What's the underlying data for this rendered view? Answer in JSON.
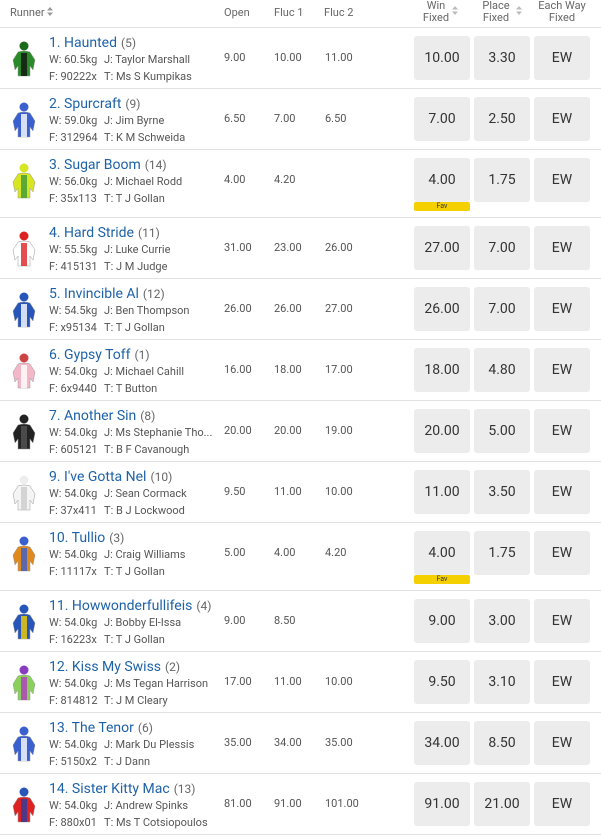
{
  "header": {
    "runner": "Runner",
    "open": "Open",
    "fluc1": "Fluc 1",
    "fluc2": "Fluc 2",
    "win": [
      "Win",
      "Fixed"
    ],
    "place": [
      "Place",
      "Fixed"
    ],
    "each_way": [
      "Each Way",
      "Fixed"
    ]
  },
  "runners": [
    {
      "name": "1. Haunted",
      "barrier": "(5)",
      "weight": "W: 60.5kg",
      "jockey": "J: Taylor Marshall",
      "form": "F: 90222x",
      "trainer": "T: Ms S Kumpikas",
      "open": "9.00",
      "fluc1": "10.00",
      "fluc2": "11.00",
      "win": "10.00",
      "place": "3.30",
      "ew": "EW",
      "fav": null
    },
    {
      "name": "2. Spurcraft",
      "barrier": "(9)",
      "weight": "W: 59.0kg",
      "jockey": "J: Jim Byrne",
      "form": "F: 312964",
      "trainer": "T: K M Schweida",
      "open": "6.50",
      "fluc1": "7.00",
      "fluc2": "6.50",
      "win": "7.00",
      "place": "2.50",
      "ew": "EW",
      "fav": null
    },
    {
      "name": "3. Sugar Boom",
      "barrier": "(14)",
      "weight": "W: 56.0kg",
      "jockey": "J: Michael Rodd",
      "form": "F: 35x113",
      "trainer": "T: T J Gollan",
      "open": "4.00",
      "fluc1": "4.20",
      "fluc2": null,
      "win": "4.00",
      "place": "1.75",
      "ew": "EW",
      "fav": "Fav"
    },
    {
      "name": "4. Hard Stride",
      "barrier": "(11)",
      "weight": "W: 55.5kg",
      "jockey": "J: Luke Currie",
      "form": "F: 415131",
      "trainer": "T: J M Judge",
      "open": "31.00",
      "fluc1": "23.00",
      "fluc2": "26.00",
      "win": "27.00",
      "place": "7.00",
      "ew": "EW",
      "fav": null
    },
    {
      "name": "5. Invincible Al",
      "barrier": "(12)",
      "weight": "W: 54.5kg",
      "jockey": "J: Ben Thompson",
      "form": "F: x95134",
      "trainer": "T: T J Gollan",
      "open": "26.00",
      "fluc1": "26.00",
      "fluc2": "27.00",
      "win": "26.00",
      "place": "7.00",
      "ew": "EW",
      "fav": null
    },
    {
      "name": "6. Gypsy Toff",
      "barrier": "(1)",
      "weight": "W: 54.0kg",
      "jockey": "J: Michael Cahill",
      "form": "F: 6x9440",
      "trainer": "T: T Button",
      "open": "16.00",
      "fluc1": "18.00",
      "fluc2": "17.00",
      "win": "18.00",
      "place": "4.80",
      "ew": "EW",
      "fav": null
    },
    {
      "name": "7. Another Sin",
      "barrier": "(8)",
      "weight": "W: 54.0kg",
      "jockey": "J: Ms Stephanie Tho...",
      "form": "F: 605121",
      "trainer": "T: B F Cavanough",
      "open": "20.00",
      "fluc1": "20.00",
      "fluc2": "19.00",
      "win": "20.00",
      "place": "5.00",
      "ew": "EW",
      "fav": null
    },
    {
      "name": "9. I've Gotta Nel",
      "barrier": "(10)",
      "weight": "W: 54.0kg",
      "jockey": "J: Sean Cormack",
      "form": "F: 37x411",
      "trainer": "T: B J Lockwood",
      "open": "9.50",
      "fluc1": "11.00",
      "fluc2": "10.00",
      "win": "11.00",
      "place": "3.50",
      "ew": "EW",
      "fav": null
    },
    {
      "name": "10. Tullio",
      "barrier": "(3)",
      "weight": "W: 54.0kg",
      "jockey": "J: Craig Williams",
      "form": "F: 11117x",
      "trainer": "T: T J Gollan",
      "open": "5.00",
      "fluc1": "4.00",
      "fluc2": "4.20",
      "win": "4.00",
      "place": "1.75",
      "ew": "EW",
      "fav": "Fav"
    },
    {
      "name": "11. Howwonderfullifeis",
      "barrier": "(4)",
      "weight": "W: 54.0kg",
      "jockey": "J: Bobby El-Issa",
      "form": "F: 16223x",
      "trainer": "T: T J Gollan",
      "open": "9.00",
      "fluc1": "8.50",
      "fluc2": null,
      "win": "9.00",
      "place": "3.00",
      "ew": "EW",
      "fav": null
    },
    {
      "name": "12. Kiss My Swiss",
      "barrier": "(2)",
      "weight": "W: 54.0kg",
      "jockey": "J: Ms Tegan Harrison",
      "form": "F: 814812",
      "trainer": "T: J M Cleary",
      "open": "17.00",
      "fluc1": "11.00",
      "fluc2": "10.00",
      "win": "9.50",
      "place": "3.10",
      "ew": "EW",
      "fav": null
    },
    {
      "name": "13. The Tenor",
      "barrier": "(6)",
      "weight": "W: 54.0kg",
      "jockey": "J: Mark Du Plessis",
      "form": "F: 5150x2",
      "trainer": "T: J Dann",
      "open": "35.00",
      "fluc1": "34.00",
      "fluc2": "35.00",
      "win": "34.00",
      "place": "8.50",
      "ew": "EW",
      "fav": null
    },
    {
      "name": "14. Sister Kitty Mac",
      "barrier": "(13)",
      "weight": "W: 54.0kg",
      "jockey": "J: Andrew Spinks",
      "form": "F: 880x01",
      "trainer": "T: Ms T Cotsiopoulos",
      "open": "81.00",
      "fluc1": "91.00",
      "fluc2": "101.00",
      "win": "91.00",
      "place": "21.00",
      "ew": "EW",
      "fav": null
    }
  ]
}
